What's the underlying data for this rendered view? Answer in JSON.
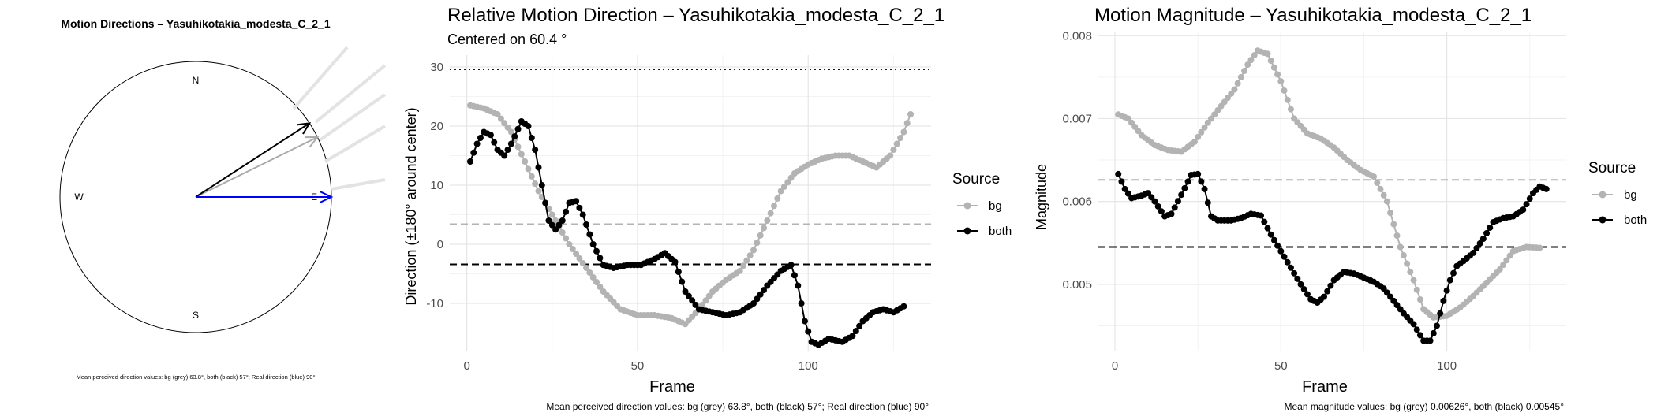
{
  "chart_data": [
    {
      "type": "polar",
      "title": "Motion Directions – Yasuhikotakia_modesta_C_2_1",
      "compass": {
        "north": "N",
        "east": "E",
        "south": "S",
        "west": "W"
      },
      "arrows": [
        {
          "name": "bg",
          "angle_deg": 63.8,
          "color": "#aaaaaa"
        },
        {
          "name": "both",
          "angle_deg": 57,
          "color": "#000000"
        },
        {
          "name": "real",
          "angle_deg": 90,
          "color": "#0000ff"
        }
      ],
      "footnote": "Mean perceived direction values: bg (grey) 63.8°, both (black) 57°; Real direction (blue) 90°"
    },
    {
      "type": "line",
      "title": "Relative Motion Direction – Yasuhikotakia_modesta_C_2_1",
      "subtitle": "Centered on  60.4 °",
      "xlabel": "Frame",
      "ylabel": "Direction (±180° around center)",
      "xlim": [
        -5,
        136
      ],
      "ylim": [
        -18,
        32
      ],
      "xticks": [
        0,
        50,
        100
      ],
      "yticks": [
        -10,
        0,
        10,
        20,
        30
      ],
      "legend_title": "Source",
      "series": [
        {
          "name": "bg",
          "color": "#b3b3b3",
          "knots": [
            [
              1,
              23.5
            ],
            [
              5,
              23
            ],
            [
              9,
              22
            ],
            [
              13,
              19
            ],
            [
              17,
              14
            ],
            [
              21,
              9
            ],
            [
              25,
              5
            ],
            [
              30,
              0
            ],
            [
              35,
              -4
            ],
            [
              40,
              -8
            ],
            [
              45,
              -11
            ],
            [
              50,
              -12
            ],
            [
              55,
              -12
            ],
            [
              60,
              -12.5
            ],
            [
              64,
              -13.5
            ],
            [
              68,
              -11
            ],
            [
              72,
              -8
            ],
            [
              76,
              -6
            ],
            [
              80,
              -4.5
            ],
            [
              84,
              -1
            ],
            [
              88,
              4
            ],
            [
              92,
              9
            ],
            [
              96,
              12
            ],
            [
              100,
              13.5
            ],
            [
              104,
              14.5
            ],
            [
              108,
              15
            ],
            [
              112,
              15
            ],
            [
              116,
              14
            ],
            [
              120,
              13
            ],
            [
              124,
              15
            ],
            [
              128,
              19
            ],
            [
              130,
              22
            ]
          ]
        },
        {
          "name": "both",
          "color": "#000000",
          "knots": [
            [
              1,
              14
            ],
            [
              3,
              17
            ],
            [
              5,
              19
            ],
            [
              7,
              18.5
            ],
            [
              9,
              16
            ],
            [
              11,
              15
            ],
            [
              13,
              17
            ],
            [
              15,
              19.5
            ],
            [
              16,
              20.8
            ],
            [
              18,
              20
            ],
            [
              20,
              16
            ],
            [
              22,
              10
            ],
            [
              24,
              4
            ],
            [
              26,
              2.5
            ],
            [
              28,
              4
            ],
            [
              30,
              7
            ],
            [
              32,
              7.3
            ],
            [
              34,
              5
            ],
            [
              37,
              0
            ],
            [
              40,
              -3.5
            ],
            [
              43,
              -4
            ],
            [
              47,
              -3.5
            ],
            [
              51,
              -3.5
            ],
            [
              55,
              -2.5
            ],
            [
              58,
              -1.5
            ],
            [
              61,
              -3
            ],
            [
              64,
              -8
            ],
            [
              68,
              -11
            ],
            [
              72,
              -11.5
            ],
            [
              76,
              -12
            ],
            [
              80,
              -11.5
            ],
            [
              84,
              -10
            ],
            [
              88,
              -7
            ],
            [
              92,
              -4.5
            ],
            [
              95,
              -3.5
            ],
            [
              97,
              -7
            ],
            [
              99,
              -13
            ],
            [
              101,
              -16.5
            ],
            [
              103,
              -17
            ],
            [
              106,
              -16
            ],
            [
              110,
              -16.5
            ],
            [
              113,
              -15.5
            ],
            [
              116,
              -13
            ],
            [
              119,
              -11.5
            ],
            [
              122,
              -11
            ],
            [
              125,
              -11.5
            ],
            [
              128,
              -10.5
            ]
          ]
        }
      ],
      "reference_lines": [
        {
          "y": 29.6,
          "color": "#0000cc",
          "style": "dotted"
        },
        {
          "y": 3.4,
          "color": "#b3b3b3",
          "style": "dashed"
        },
        {
          "y": -3.4,
          "color": "#000000",
          "style": "dashed"
        }
      ],
      "footnote": "Mean perceived direction values: bg (grey) 63.8°, both (black) 57°; Real direction (blue) 90°"
    },
    {
      "type": "line",
      "title": "Motion Magnitude – Yasuhikotakia_modesta_C_2_1",
      "xlabel": "Frame",
      "ylabel": "Magnitude",
      "xlim": [
        -5,
        136
      ],
      "ylim": [
        0.0042,
        0.00805
      ],
      "xticks": [
        0,
        50,
        100
      ],
      "yticks": [
        0.005,
        0.006,
        0.007,
        0.008
      ],
      "ytick_labels": [
        "0.005",
        "0.006",
        "0.007",
        "0.008"
      ],
      "legend_title": "Source",
      "series": [
        {
          "name": "bg",
          "color": "#b3b3b3",
          "knots": [
            [
              1,
              0.00705
            ],
            [
              4,
              0.007
            ],
            [
              8,
              0.0068
            ],
            [
              12,
              0.00668
            ],
            [
              16,
              0.00662
            ],
            [
              20,
              0.0066
            ],
            [
              24,
              0.00672
            ],
            [
              28,
              0.00695
            ],
            [
              32,
              0.00715
            ],
            [
              36,
              0.00735
            ],
            [
              40,
              0.00765
            ],
            [
              43,
              0.00782
            ],
            [
              46,
              0.00778
            ],
            [
              50,
              0.00745
            ],
            [
              54,
              0.007
            ],
            [
              58,
              0.00682
            ],
            [
              62,
              0.00676
            ],
            [
              66,
              0.00665
            ],
            [
              70,
              0.0065
            ],
            [
              74,
              0.00638
            ],
            [
              78,
              0.0063
            ],
            [
              82,
              0.006
            ],
            [
              86,
              0.00545
            ],
            [
              90,
              0.00505
            ],
            [
              93,
              0.0047
            ],
            [
              96,
              0.0046
            ],
            [
              100,
              0.00462
            ],
            [
              104,
              0.00472
            ],
            [
              108,
              0.00486
            ],
            [
              112,
              0.00502
            ],
            [
              116,
              0.00518
            ],
            [
              120,
              0.0054
            ],
            [
              124,
              0.00545
            ],
            [
              128,
              0.00544
            ]
          ]
        },
        {
          "name": "both",
          "color": "#000000",
          "knots": [
            [
              1,
              0.00633
            ],
            [
              3,
              0.00615
            ],
            [
              5,
              0.00604
            ],
            [
              8,
              0.00607
            ],
            [
              10,
              0.0061
            ],
            [
              12,
              0.006
            ],
            [
              15,
              0.00582
            ],
            [
              17,
              0.00585
            ],
            [
              20,
              0.00608
            ],
            [
              23,
              0.00632
            ],
            [
              25,
              0.00633
            ],
            [
              27,
              0.00615
            ],
            [
              29,
              0.00582
            ],
            [
              31,
              0.00577
            ],
            [
              35,
              0.00577
            ],
            [
              38,
              0.0058
            ],
            [
              41,
              0.00585
            ],
            [
              44,
              0.00583
            ],
            [
              47,
              0.0056
            ],
            [
              50,
              0.0054
            ],
            [
              53,
              0.0052
            ],
            [
              56,
              0.005
            ],
            [
              59,
              0.00482
            ],
            [
              61,
              0.00478
            ],
            [
              63,
              0.00485
            ],
            [
              66,
              0.00505
            ],
            [
              69,
              0.00515
            ],
            [
              72,
              0.00513
            ],
            [
              75,
              0.00508
            ],
            [
              78,
              0.00503
            ],
            [
              81,
              0.00495
            ],
            [
              84,
              0.0048
            ],
            [
              87,
              0.00465
            ],
            [
              90,
              0.00452
            ],
            [
              93,
              0.00432
            ],
            [
              95,
              0.00432
            ],
            [
              97,
              0.0045
            ],
            [
              99,
              0.0048
            ],
            [
              101,
              0.00505
            ],
            [
              103,
              0.00522
            ],
            [
              105,
              0.00528
            ],
            [
              108,
              0.00538
            ],
            [
              111,
              0.00555
            ],
            [
              114,
              0.00575
            ],
            [
              117,
              0.0058
            ],
            [
              120,
              0.00582
            ],
            [
              123,
              0.0059
            ],
            [
              126,
              0.0061
            ],
            [
              128,
              0.00618
            ],
            [
              130,
              0.00615
            ]
          ]
        }
      ],
      "reference_lines": [
        {
          "y": 0.00626,
          "color": "#b3b3b3",
          "style": "dashed"
        },
        {
          "y": 0.00545,
          "color": "#000000",
          "style": "dashed"
        }
      ],
      "footnote": "Mean magnitude values: bg (grey) 0.00626°, both (black) 0.00545°"
    }
  ]
}
